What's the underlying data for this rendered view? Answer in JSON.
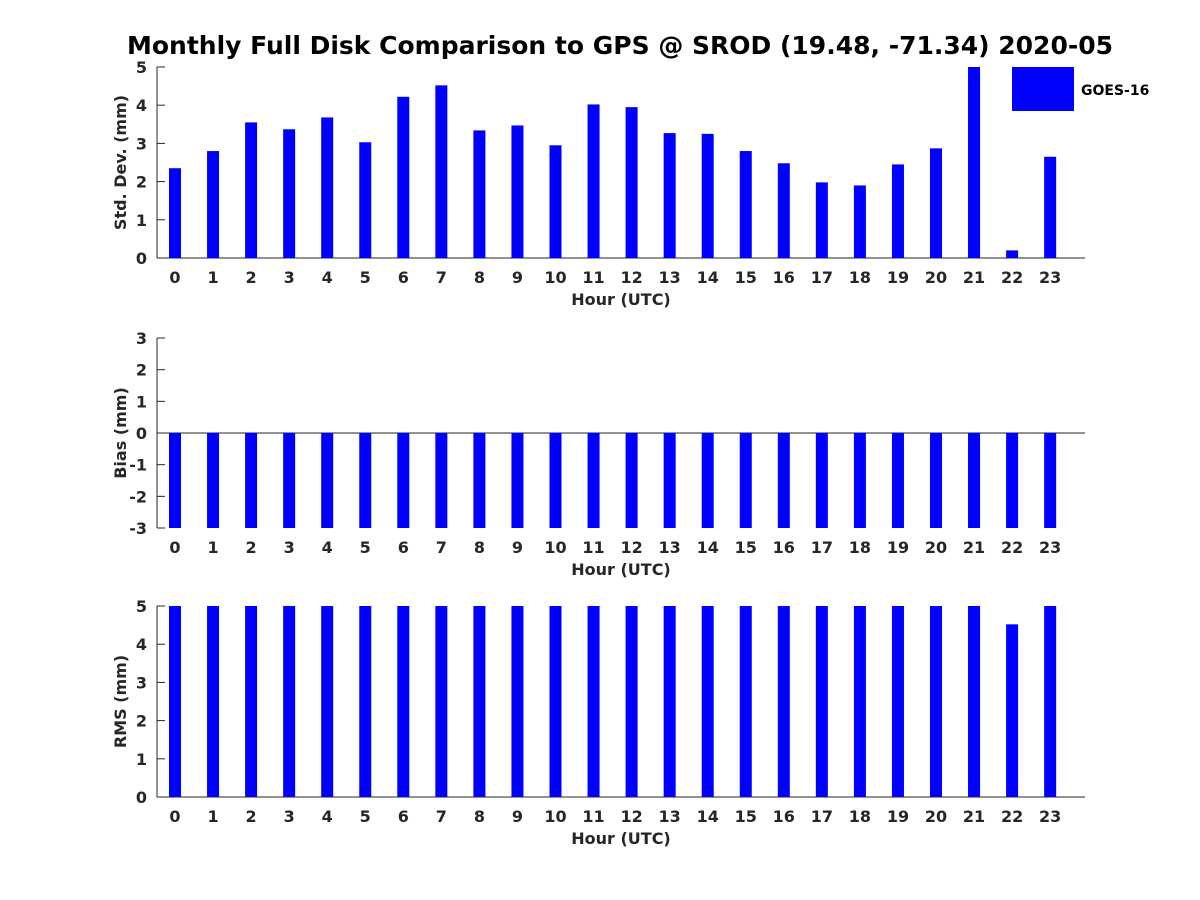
{
  "chart_data": {
    "type": "bar",
    "title": "Monthly Full Disk Comparison to GPS @ SROD (19.48, -71.34) 2020-05",
    "categories": [
      "0",
      "1",
      "2",
      "3",
      "4",
      "5",
      "6",
      "7",
      "8",
      "9",
      "10",
      "11",
      "12",
      "13",
      "14",
      "15",
      "16",
      "17",
      "18",
      "19",
      "20",
      "21",
      "22",
      "23"
    ],
    "legend": {
      "entries": [
        "GOES-16"
      ],
      "placement": "top-right"
    },
    "series_color": "#0000ff",
    "panels": [
      {
        "name": "std",
        "xlabel": "Hour (UTC)",
        "ylabel": "Std. Dev. (mm)",
        "ylim": [
          0,
          5
        ],
        "yticks": [
          "0",
          "1",
          "2",
          "3",
          "4",
          "5"
        ],
        "series": [
          {
            "name": "GOES-16",
            "values": [
              2.35,
              2.8,
              3.55,
              3.37,
              3.68,
              3.03,
              4.22,
              4.52,
              3.34,
              3.47,
              2.95,
              4.02,
              3.95,
              3.27,
              3.25,
              2.8,
              2.48,
              1.98,
              1.9,
              2.45,
              2.87,
              5.0,
              0.2,
              2.65
            ]
          }
        ]
      },
      {
        "name": "bias",
        "xlabel": "Hour (UTC)",
        "ylabel": "Bias (mm)",
        "ylim": [
          -3,
          3
        ],
        "yticks": [
          "-3",
          "-2",
          "-1",
          "0",
          "1",
          "2",
          "3"
        ],
        "series": [
          {
            "name": "GOES-16",
            "values": [
              -3,
              -3,
              -3,
              -3,
              -3,
              -3,
              -3,
              -3,
              -3,
              -3,
              -3,
              -3,
              -3,
              -3,
              -3,
              -3,
              -3,
              -3,
              -3,
              -3,
              -3,
              -3,
              -3,
              -3
            ]
          }
        ]
      },
      {
        "name": "rms",
        "xlabel": "Hour (UTC)",
        "ylabel": "RMS (mm)",
        "ylim": [
          0,
          5
        ],
        "yticks": [
          "0",
          "1",
          "2",
          "3",
          "4",
          "5"
        ],
        "series": [
          {
            "name": "GOES-16",
            "values": [
              5,
              5,
              5,
              5,
              5,
              5,
              5,
              5,
              5,
              5,
              5,
              5,
              5,
              5,
              5,
              5,
              5,
              5,
              5,
              5,
              5,
              5,
              4.52,
              5
            ]
          }
        ]
      }
    ]
  }
}
